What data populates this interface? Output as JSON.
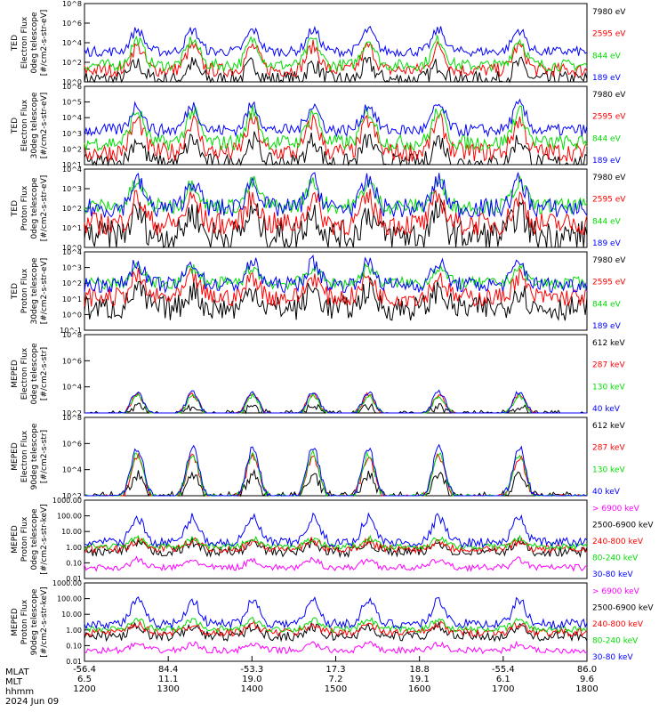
{
  "chart_data": [
    {
      "type": "line",
      "ylabel": [
        "TED",
        "Electron Flux",
        "0deg telescope",
        "[#/cm2-s-str-eV]"
      ],
      "scale": "log",
      "tick_labels": [
        "10^0",
        "10^2",
        "10^4",
        "10^6",
        "10^8"
      ],
      "tick_exponents": [
        0,
        2,
        4,
        6,
        8
      ],
      "legend_position": "right",
      "series": [
        {
          "name": "7980 eV",
          "color": "#000000",
          "base": 0.2,
          "amp": 1.6,
          "noise": 0.9
        },
        {
          "name": "2595 eV",
          "color": "#ff0000",
          "base": 1.2,
          "amp": 2.4,
          "noise": 0.7
        },
        {
          "name": "844 eV",
          "color": "#00dd00",
          "base": 1.7,
          "amp": 2.6,
          "noise": 0.6
        },
        {
          "name": "189 eV",
          "color": "#0000ff",
          "base": 3.1,
          "amp": 2.2,
          "noise": 0.5
        }
      ]
    },
    {
      "type": "line",
      "ylabel": [
        "TED",
        "Electron Flux",
        "30deg telescope",
        "[#/cm2-s-str-eV]"
      ],
      "scale": "log",
      "tick_labels": [
        "10^1",
        "10^2",
        "10^3",
        "10^4",
        "10^5",
        "10^6"
      ],
      "tick_exponents": [
        1,
        2,
        3,
        4,
        5,
        6
      ],
      "legend_position": "right",
      "series": [
        {
          "name": "7980 eV",
          "color": "#000000",
          "base": 1.1,
          "amp": 1.5,
          "noise": 0.6
        },
        {
          "name": "2595 eV",
          "color": "#ff0000",
          "base": 1.8,
          "amp": 2.0,
          "noise": 0.6
        },
        {
          "name": "844 eV",
          "color": "#00dd00",
          "base": 2.4,
          "amp": 2.0,
          "noise": 0.5
        },
        {
          "name": "189 eV",
          "color": "#0000ff",
          "base": 3.2,
          "amp": 1.6,
          "noise": 0.4
        }
      ]
    },
    {
      "type": "line",
      "ylabel": [
        "TED",
        "Proton Flux",
        "0deg telescope",
        "[#/cm2-s-str-eV]"
      ],
      "scale": "log",
      "tick_labels": [
        "10^0",
        "10^1",
        "10^2",
        "10^3",
        "10^4"
      ],
      "tick_exponents": [
        0,
        1,
        2,
        3,
        4
      ],
      "legend_position": "right",
      "series": [
        {
          "name": "7980 eV",
          "color": "#000000",
          "base": 0.6,
          "amp": 1.2,
          "noise": 0.8
        },
        {
          "name": "2595 eV",
          "color": "#ff0000",
          "base": 1.2,
          "amp": 1.3,
          "noise": 0.6
        },
        {
          "name": "844 eV",
          "color": "#00dd00",
          "base": 2.1,
          "amp": 1.2,
          "noise": 0.4
        },
        {
          "name": "189 eV",
          "color": "#0000ff",
          "base": 2.0,
          "amp": 1.4,
          "noise": 0.5
        }
      ]
    },
    {
      "type": "line",
      "ylabel": [
        "TED",
        "Proton Flux",
        "30deg telescope",
        "[#/cm2-s-str-eV]"
      ],
      "scale": "log",
      "tick_labels": [
        "10^-1",
        "10^0",
        "10^1",
        "10^2",
        "10^3",
        "10^4"
      ],
      "tick_exponents": [
        -1,
        0,
        1,
        2,
        3,
        4
      ],
      "legend_position": "right",
      "series": [
        {
          "name": "7980 eV",
          "color": "#000000",
          "base": 0.4,
          "amp": 1.2,
          "noise": 0.8
        },
        {
          "name": "2595 eV",
          "color": "#ff0000",
          "base": 1.1,
          "amp": 1.3,
          "noise": 0.6
        },
        {
          "name": "844 eV",
          "color": "#00dd00",
          "base": 2.0,
          "amp": 1.0,
          "noise": 0.4
        },
        {
          "name": "189 eV",
          "color": "#0000ff",
          "base": 1.9,
          "amp": 1.4,
          "noise": 0.5
        }
      ]
    },
    {
      "type": "line",
      "ylabel": [
        "MEPED",
        "Electron Flux",
        "0deg telescope",
        "[#/cm2-s-str]"
      ],
      "scale": "log",
      "tick_labels": [
        "10^2",
        "10^4",
        "10^6",
        "10^8"
      ],
      "tick_exponents": [
        2,
        4,
        6,
        8
      ],
      "legend_position": "right",
      "series": [
        {
          "name": "612 keV",
          "color": "#000000",
          "base": 1.9,
          "amp": 0.6,
          "noise": 0.3
        },
        {
          "name": "287 keV",
          "color": "#ff0000",
          "base": 1.8,
          "amp": 1.6,
          "noise": 0.2
        },
        {
          "name": "130 keV",
          "color": "#00dd00",
          "base": 1.8,
          "amp": 1.5,
          "noise": 0.2
        },
        {
          "name": "40 keV",
          "color": "#0000ff",
          "base": 1.8,
          "amp": 1.8,
          "noise": 0.2
        }
      ]
    },
    {
      "type": "line",
      "ylabel": [
        "MEPED",
        "Electron Flux",
        "90deg telescope",
        "[#/cm2-s-str]"
      ],
      "scale": "log",
      "tick_labels": [
        "10^2",
        "10^4",
        "10^6",
        "10^8"
      ],
      "tick_exponents": [
        2,
        4,
        6,
        8
      ],
      "legend_position": "right",
      "series": [
        {
          "name": "612 keV",
          "color": "#000000",
          "base": 1.9,
          "amp": 1.7,
          "noise": 0.4
        },
        {
          "name": "287 keV",
          "color": "#ff0000",
          "base": 1.8,
          "amp": 3.2,
          "noise": 0.3
        },
        {
          "name": "130 keV",
          "color": "#00dd00",
          "base": 1.8,
          "amp": 3.4,
          "noise": 0.3
        },
        {
          "name": "40 keV",
          "color": "#0000ff",
          "base": 1.8,
          "amp": 3.9,
          "noise": 0.3
        }
      ]
    },
    {
      "type": "line",
      "ylabel": [
        "MEPED",
        "Proton Flux",
        "0deg telescope",
        "[#/cm2-s-str-keV]"
      ],
      "scale": "log",
      "tick_labels": [
        "0.01",
        "0.10",
        "1.00",
        "10.00",
        "100.00",
        "1000.00"
      ],
      "tick_exponents": [
        -2,
        -1,
        0,
        1,
        2,
        3
      ],
      "legend_position": "right",
      "series": [
        {
          "name": "> 6900 keV",
          "color": "#ff00ff",
          "base": -1.3,
          "amp": 0.5,
          "noise": 0.2
        },
        {
          "name": "2500-6900 keV",
          "color": "#000000",
          "base": -0.3,
          "amp": 0.6,
          "noise": 0.3
        },
        {
          "name": "240-800 keV",
          "color": "#ff0000",
          "base": -0.1,
          "amp": 0.5,
          "noise": 0.25
        },
        {
          "name": "80-240 keV",
          "color": "#00dd00",
          "base": 0.05,
          "amp": 0.5,
          "noise": 0.2
        },
        {
          "name": "30-80 keV",
          "color": "#0000ff",
          "base": 0.3,
          "amp": 1.6,
          "noise": 0.3
        }
      ]
    },
    {
      "type": "line",
      "ylabel": [
        "MEPED",
        "Proton Flux",
        "90deg telescope",
        "[#/cm2-s-str-keV]"
      ],
      "scale": "log",
      "tick_labels": [
        "0.01",
        "0.10",
        "1.00",
        "10.00",
        "100.00",
        "1000.00"
      ],
      "tick_exponents": [
        -2,
        -1,
        0,
        1,
        2,
        3
      ],
      "legend_position": "right",
      "series": [
        {
          "name": "> 6900 keV",
          "color": "#ff00ff",
          "base": -1.3,
          "amp": 0.4,
          "noise": 0.2
        },
        {
          "name": "2500-6900 keV",
          "color": "#000000",
          "base": -0.4,
          "amp": 0.6,
          "noise": 0.3
        },
        {
          "name": "240-800 keV",
          "color": "#ff0000",
          "base": -0.15,
          "amp": 0.5,
          "noise": 0.25
        },
        {
          "name": "80-240 keV",
          "color": "#00dd00",
          "base": 0.05,
          "amp": 0.6,
          "noise": 0.2
        },
        {
          "name": "30-80 keV",
          "color": "#0000ff",
          "base": 0.4,
          "amp": 1.5,
          "noise": 0.3
        }
      ]
    }
  ],
  "x_axis": {
    "row_labels": [
      "MLAT",
      "MLT",
      "hhmm",
      "2024 Jun 09"
    ],
    "ticks": [
      {
        "frac": 0.0,
        "mlat": "-56.4",
        "mlt": "6.5",
        "time": "1200"
      },
      {
        "frac": 0.1667,
        "mlat": "84.4",
        "mlt": "11.1",
        "time": "1300"
      },
      {
        "frac": 0.3333,
        "mlat": "-53.3",
        "mlt": "19.0",
        "time": "1400"
      },
      {
        "frac": 0.5,
        "mlat": "17.3",
        "mlt": "7.2",
        "time": "1500"
      },
      {
        "frac": 0.6667,
        "mlat": "18.8",
        "mlt": "19.1",
        "time": "1600"
      },
      {
        "frac": 0.8333,
        "mlat": "-55.4",
        "mlt": "6.1",
        "time": "1700"
      },
      {
        "frac": 1.0,
        "mlat": "86.0",
        "mlt": "9.6",
        "time": "1800"
      }
    ]
  }
}
